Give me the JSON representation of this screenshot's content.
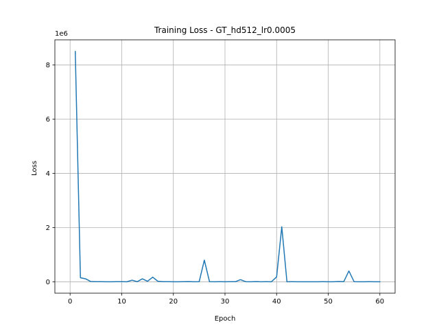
{
  "chart_data": {
    "type": "line",
    "title": "Training Loss - GT_hd512_lr0.0005",
    "xlabel": "Epoch",
    "ylabel": "Loss",
    "y_offset_label": "1e6",
    "y_scale_multiplier": 1000000,
    "xlim": [
      -2.95,
      62.95
    ],
    "ylim": [
      -420000,
      8930000
    ],
    "x_ticks": [
      0,
      10,
      20,
      30,
      40,
      50,
      60
    ],
    "x_tick_labels": [
      "0",
      "10",
      "20",
      "30",
      "40",
      "50",
      "60"
    ],
    "y_ticks": [
      0,
      2000000,
      4000000,
      6000000,
      8000000
    ],
    "y_tick_labels": [
      "0",
      "2",
      "4",
      "6",
      "8"
    ],
    "grid": true,
    "series": [
      {
        "color": "#1f77b4",
        "x": [
          1,
          2,
          3,
          4,
          5,
          6,
          7,
          8,
          9,
          10,
          11,
          12,
          13,
          14,
          15,
          16,
          17,
          18,
          19,
          20,
          21,
          22,
          23,
          24,
          25,
          26,
          27,
          28,
          29,
          30,
          31,
          32,
          33,
          34,
          35,
          36,
          37,
          38,
          39,
          40,
          41,
          42,
          43,
          44,
          45,
          46,
          47,
          48,
          49,
          50,
          51,
          52,
          53,
          54,
          55,
          56,
          57,
          58,
          59,
          60
        ],
        "values": [
          8500000,
          150000,
          110000,
          10000,
          5000,
          3000,
          2000,
          2000,
          5000,
          3000,
          2000,
          60000,
          5000,
          110000,
          20000,
          170000,
          20000,
          5000,
          3000,
          2000,
          2000,
          3000,
          8000,
          2000,
          3000,
          800000,
          5000,
          2000,
          3000,
          2000,
          3000,
          3000,
          80000,
          5000,
          2000,
          8000,
          2000,
          3000,
          2000,
          180000,
          2030000,
          2000,
          3000,
          2000,
          2000,
          2000,
          2000,
          2000,
          3000,
          2000,
          2000,
          10000,
          3000,
          400000,
          5000,
          2000,
          2000,
          3000,
          2000,
          2000
        ]
      }
    ]
  }
}
